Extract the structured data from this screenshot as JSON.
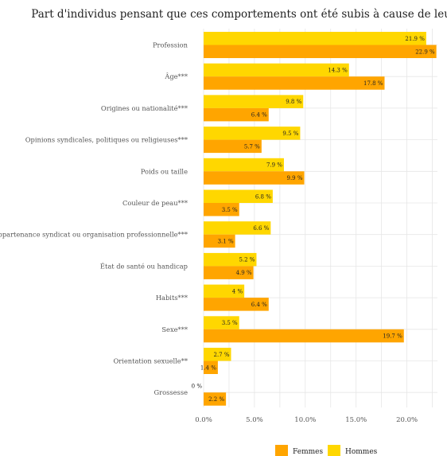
{
  "chart_data": {
    "type": "bar",
    "orientation": "horizontal",
    "title": "Part d'individus pensant que ces comportements ont été subis à cause de leur...",
    "categories": [
      "Profession",
      "Âge***",
      "Origines ou nationalité***",
      "Opinions syndicales, politiques ou religieuses***",
      "Poids ou taille",
      "Couleur de peau***",
      "Appartenance syndicat ou organisation professionnelle***",
      "État de santé ou handicap",
      "Habits***",
      "Sexe***",
      "Orientation sexuelle**",
      "Grossesse"
    ],
    "series": [
      {
        "name": "Hommes",
        "color": "#FFD700",
        "values": [
          21.9,
          14.3,
          9.8,
          9.5,
          7.9,
          6.8,
          6.6,
          5.2,
          4,
          3.5,
          2.7,
          0
        ],
        "labels": [
          "21.9 %",
          "14.3 %",
          "9.8 %",
          "9.5 %",
          "7.9 %",
          "6.8 %",
          "6.6 %",
          "5.2 %",
          "4 %",
          "3.5 %",
          "2.7 %",
          "0 %"
        ]
      },
      {
        "name": "Femmes",
        "color": "#FFA500",
        "values": [
          22.9,
          17.8,
          6.4,
          5.7,
          9.9,
          3.5,
          3.1,
          4.9,
          6.4,
          19.7,
          1.4,
          2.2
        ],
        "labels": [
          "22.9 %",
          "17.8 %",
          "6.4 %",
          "5.7 %",
          "9.9 %",
          "3.5 %",
          "3.1 %",
          "4.9 %",
          "6.4 %",
          "19.7 %",
          "1.4 %",
          "2.2 %"
        ]
      }
    ],
    "xlim": [
      0,
      23
    ],
    "x_ticks": [
      0,
      5,
      10,
      15,
      20
    ],
    "x_tick_labels": [
      "0.0%",
      "5.0%",
      "10.0%",
      "15.0%",
      "20.0%"
    ],
    "grid": true,
    "legend": {
      "position": "bottom",
      "entries": [
        "Femmes",
        "Hommes"
      ]
    }
  }
}
